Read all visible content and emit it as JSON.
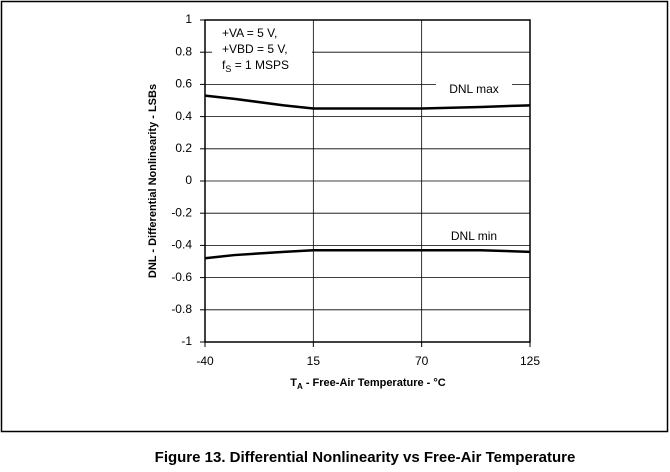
{
  "chart_data": {
    "type": "line",
    "title": "Figure 13. Differential Nonlinearity vs Free-Air Temperature",
    "y_label": "DNL - Differential Nonlinearity - LSBs",
    "x_label": {
      "main": "T",
      "sub": "A",
      "rest": " - Free-Air Temperature - °C"
    },
    "annotations": [
      {
        "main": "+VA = 5 V,"
      },
      {
        "main": "+VBD = 5 V,"
      },
      {
        "main": "f",
        "sub": "S",
        "rest": " = 1 MSPS"
      }
    ],
    "x": [
      -40,
      -25,
      0,
      15,
      40,
      70,
      100,
      125
    ],
    "series": [
      {
        "name": "DNL max",
        "color": "#000000",
        "values": [
          0.53,
          0.51,
          0.47,
          0.45,
          0.45,
          0.45,
          0.46,
          0.47
        ]
      },
      {
        "name": "DNL min",
        "color": "#000000",
        "values": [
          -0.48,
          -0.46,
          -0.44,
          -0.43,
          -0.43,
          -0.43,
          -0.43,
          -0.44
        ]
      }
    ],
    "xlim": [
      -40,
      125
    ],
    "xticks": [
      -40,
      15,
      70,
      125
    ],
    "ylim": [
      -1,
      1
    ],
    "yticks": [
      1,
      0.8,
      0.6,
      0.4,
      0.2,
      0,
      -0.2,
      -0.4,
      -0.6,
      -0.8,
      -1
    ],
    "grid": true
  }
}
